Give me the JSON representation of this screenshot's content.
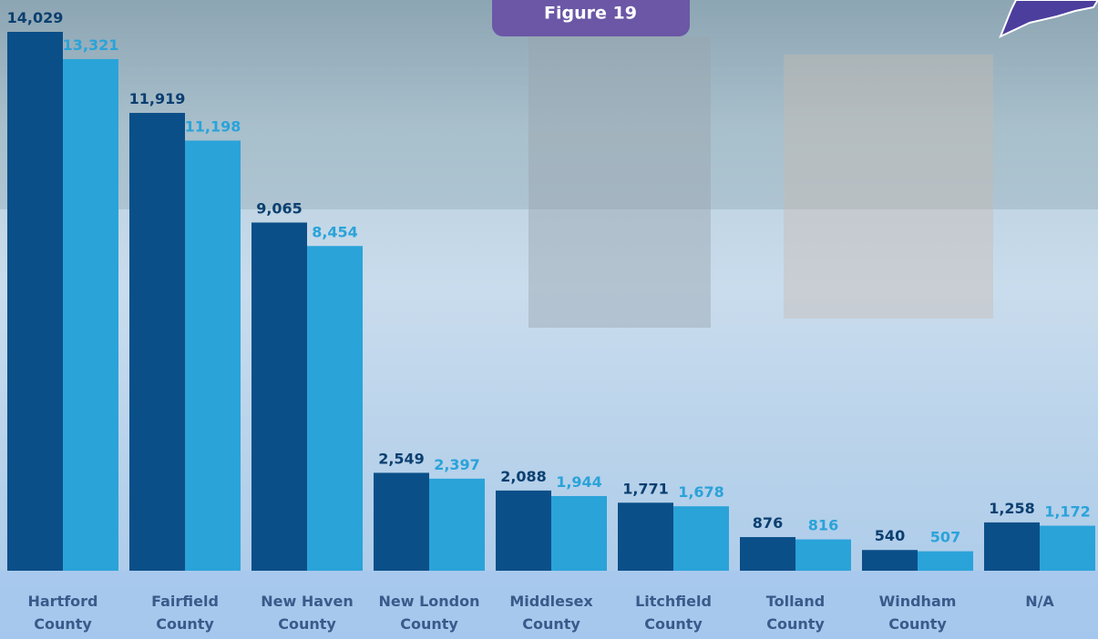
{
  "chart_data": {
    "type": "bar",
    "title": "Figure 19",
    "categories": [
      "Hartford County",
      "Fairfield County",
      "New Haven County",
      "New London County",
      "Middlesex County",
      "Litchfield County",
      "Tolland County",
      "Windham County",
      "N/A"
    ],
    "series": [
      {
        "color": "#0b4f89",
        "values": [
          14029,
          11919,
          9065,
          2549,
          2088,
          1771,
          876,
          540,
          1258
        ],
        "value_labels": [
          "14,029",
          "11,919",
          "9,065",
          "2,549",
          "2,088",
          "1,771",
          "876",
          "540",
          "1,258"
        ]
      },
      {
        "color": "#2aa3d9",
        "values": [
          13321,
          11198,
          8454,
          2397,
          1944,
          1678,
          816,
          507,
          1172
        ],
        "value_labels": [
          "13,321",
          "11,198",
          "8,454",
          "2,397",
          "1,944",
          "1,678",
          "816",
          "507",
          "1,172"
        ]
      }
    ]
  }
}
